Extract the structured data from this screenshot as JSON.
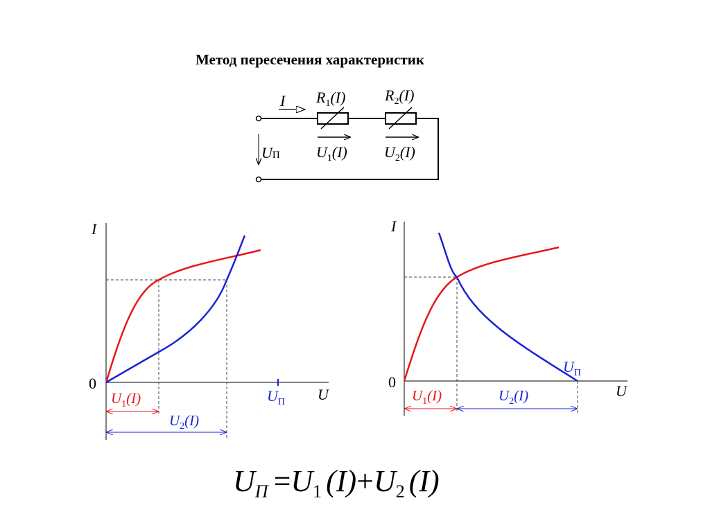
{
  "slide": {
    "title": "Метод пересечения характеристик"
  },
  "circuit": {
    "current": "I",
    "source_voltage": {
      "main": "U",
      "sub": "П"
    },
    "resistor1": {
      "main": "R",
      "sub": "1",
      "arg": "(I)"
    },
    "resistor2": {
      "main": "R",
      "sub": "2",
      "arg": "(I)"
    },
    "voltage1": {
      "main": "U",
      "sub": "1",
      "arg": "(I)"
    },
    "voltage2": {
      "main": "U",
      "sub": "2",
      "arg": "(I)"
    }
  },
  "left_plot": {
    "y_axis_label": "I",
    "x_axis_label": "U",
    "origin_label": "0",
    "up_label": {
      "main": "U",
      "sub": "П"
    },
    "u1_label": {
      "main": "U",
      "sub": "1",
      "arg": "(I)"
    },
    "u2_label": {
      "main": "U",
      "sub": "2",
      "arg": "(I)"
    }
  },
  "right_plot": {
    "y_axis_label": "I",
    "x_axis_label": "U",
    "origin_label": "0",
    "up_label": {
      "main": "U",
      "sub": "П"
    },
    "u1_label": {
      "main": "U",
      "sub": "1",
      "arg": "(I)"
    },
    "u2_label": {
      "main": "U",
      "sub": "2",
      "arg": "(I)"
    }
  },
  "formula": {
    "lhs_main": "U",
    "lhs_sub": "П",
    "eq": "=",
    "t1_main": "U",
    "t1_sub": "1",
    "t1_arg": "(I)",
    "plus": "+",
    "t2_main": "U",
    "t2_sub": "2",
    "t2_arg": "(I)"
  },
  "colors": {
    "red_curve": "#e8161b",
    "blue_curve": "#1a22d6",
    "axes": "#000000",
    "guides": "#444444"
  }
}
